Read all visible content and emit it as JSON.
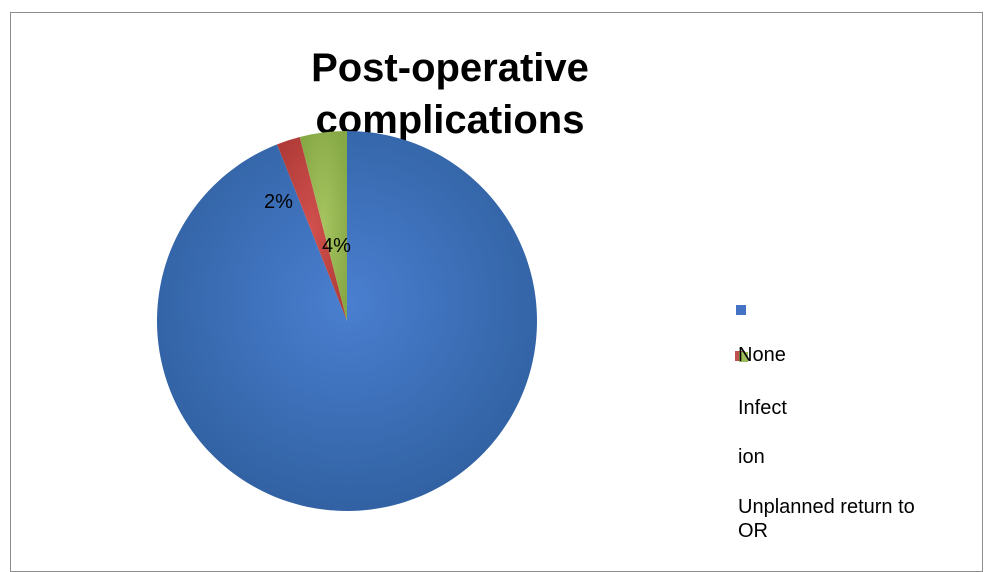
{
  "chart_data": {
    "type": "pie",
    "title": "Post-operative complications",
    "slices": [
      {
        "name": "None",
        "value": 94,
        "color": "#4472C4"
      },
      {
        "name": "Infection",
        "value": 2,
        "color": "#C0504D"
      },
      {
        "name": "Unplanned return to OR",
        "value": 4,
        "color": "#9BBB59"
      }
    ],
    "data_labels": [
      "2%",
      "4%"
    ],
    "legend_position": "right"
  },
  "legend_lines": [
    "None",
    "Infect",
    "ion",
    "Unplanned return to",
    "OR"
  ]
}
